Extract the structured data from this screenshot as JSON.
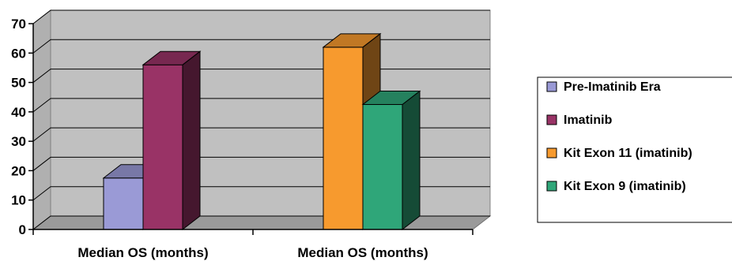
{
  "chart_data": {
    "type": "bar",
    "style": "3d-clustered-column",
    "y_ticks": [
      "0",
      "10",
      "20",
      "30",
      "40",
      "50",
      "60",
      "70"
    ],
    "ylim": [
      0,
      70
    ],
    "grid": true,
    "legend_position": "right",
    "groups": [
      {
        "label": "Median OS (months)",
        "bars": [
          {
            "series": "Pre-Imatinib Era",
            "value": 17.5
          },
          {
            "series": "Imatinib",
            "value": 56
          }
        ]
      },
      {
        "label": "Median OS (months)",
        "bars": [
          {
            "series": "Kit Exon 11 (imatinib)",
            "value": 62
          },
          {
            "series": "Kit Exon 9 (imatinib)",
            "value": 42.5
          }
        ]
      }
    ],
    "legend": [
      {
        "name": "Pre-Imatinib Era",
        "color": "#9a9ad6"
      },
      {
        "name": "Imatinib",
        "color": "#993366"
      },
      {
        "name": "Kit Exon 11 (imatinib)",
        "color": "#f79a2e"
      },
      {
        "name": "Kit Exon 9 (imatinib)",
        "color": "#2fa679"
      }
    ]
  }
}
